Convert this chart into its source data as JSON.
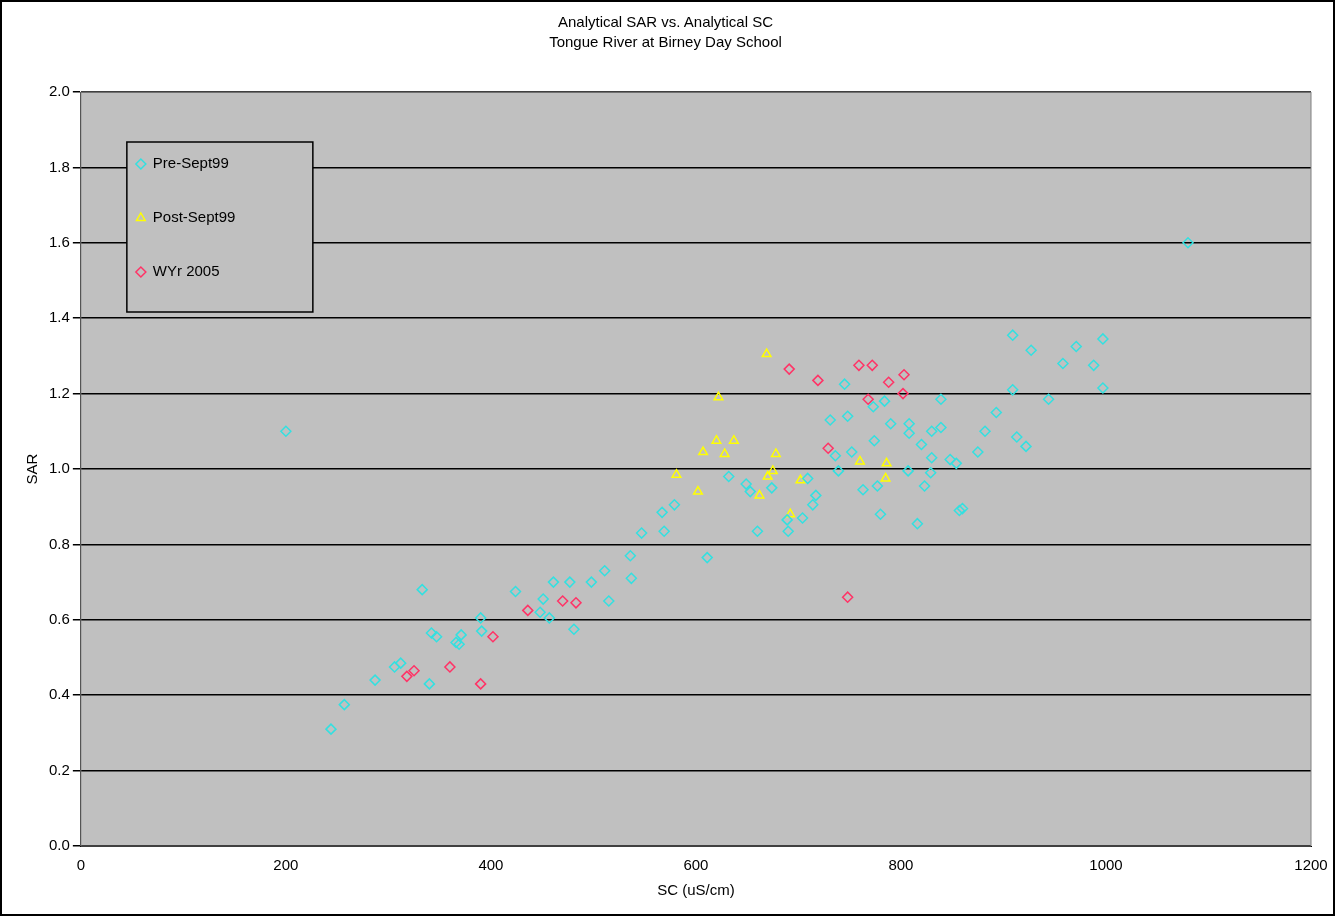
{
  "chart_data": {
    "type": "scatter",
    "title": "Analytical SAR vs. Analytical SC",
    "subtitle": "Tongue River at Birney Day School",
    "xlabel": "SC (uS/cm)",
    "ylabel": "SAR",
    "xlim": [
      0,
      1200
    ],
    "xticks": [
      0,
      200,
      400,
      600,
      800,
      1000,
      1200
    ],
    "ylim": [
      0,
      2
    ],
    "yticks": [
      {
        "value": 0,
        "label": "0.0"
      },
      {
        "value": 0.2,
        "label": "0.2"
      },
      {
        "value": 0.4,
        "label": "0.4"
      },
      {
        "value": 0.6,
        "label": "0.6"
      },
      {
        "value": 0.8,
        "label": "0.8"
      },
      {
        "value": 1,
        "label": "1.0"
      },
      {
        "value": 1.2,
        "label": "1.2"
      },
      {
        "value": 1.4,
        "label": "1.4"
      },
      {
        "value": 1.6,
        "label": "1.6"
      },
      {
        "value": 1.8,
        "label": "1.8"
      },
      {
        "value": 2,
        "label": "2.0"
      }
    ],
    "grid": "y",
    "legend": "top left",
    "series": [
      {
        "name": "Pre-Sept99",
        "color": "#33e0e0",
        "marker": "diamond",
        "x": [
          200,
          244,
          257,
          287,
          306,
          312,
          340,
          333,
          342,
          347,
          366,
          371,
          369,
          390,
          391,
          424,
          451,
          448,
          457,
          481,
          461,
          477,
          498,
          511,
          515,
          536,
          537,
          632,
          649,
          653,
          674,
          709,
          717,
          714,
          579,
          567,
          547,
          569,
          660,
          690,
          704,
          689,
          611,
          731,
          909,
          927,
          971,
          997,
          958,
          988,
          997,
          909,
          944,
          839,
          784,
          773,
          745,
          748,
          790,
          808,
          808,
          830,
          839,
          893,
          882,
          913,
          922,
          820,
          774,
          752,
          736,
          830,
          875,
          848,
          854,
          739,
          807,
          829,
          823,
          777,
          763,
          780,
          816,
          857,
          860,
          1080
        ],
        "values": [
          1.1,
          0.31,
          0.375,
          0.44,
          0.475,
          0.485,
          0.43,
          0.68,
          0.565,
          0.555,
          0.54,
          0.56,
          0.535,
          0.605,
          0.57,
          0.675,
          0.655,
          0.62,
          0.605,
          0.575,
          0.7,
          0.7,
          0.7,
          0.73,
          0.65,
          0.77,
          0.71,
          0.98,
          0.96,
          0.94,
          0.95,
          0.975,
          0.93,
          0.905,
          0.905,
          0.885,
          0.83,
          0.835,
          0.835,
          0.835,
          0.87,
          0.865,
          0.765,
          1.13,
          1.355,
          1.315,
          1.325,
          1.345,
          1.28,
          1.275,
          1.215,
          1.21,
          1.185,
          1.185,
          1.18,
          1.165,
          1.225,
          1.14,
          1.12,
          1.12,
          1.095,
          1.1,
          1.11,
          1.15,
          1.1,
          1.085,
          1.06,
          1.065,
          1.075,
          1.045,
          1.035,
          1.03,
          1.045,
          1.025,
          1.015,
          0.995,
          0.995,
          0.99,
          0.955,
          0.955,
          0.945,
          0.88,
          0.855,
          0.89,
          0.895,
          1.6
        ]
      },
      {
        "name": "Post-Sept99",
        "color": "#ffff00",
        "marker": "triangle",
        "x": [
          669,
          622,
          620,
          637,
          607,
          628,
          678,
          581,
          675,
          670,
          602,
          662,
          702,
          692,
          760,
          786,
          785
        ],
        "values": [
          1.305,
          1.19,
          1.075,
          1.075,
          1.045,
          1.04,
          1.04,
          0.985,
          0.995,
          0.98,
          0.94,
          0.93,
          0.97,
          0.88,
          1.02,
          1.015,
          0.975
        ]
      },
      {
        "name": "WYr 2005",
        "color": "#ff3366",
        "marker": "diamond",
        "x": [
          318,
          325,
          360,
          390,
          402,
          436,
          470,
          483,
          691,
          719,
          729,
          759,
          772,
          788,
          803,
          802,
          768,
          748
        ],
        "values": [
          0.45,
          0.465,
          0.475,
          0.43,
          0.555,
          0.625,
          0.65,
          0.645,
          1.265,
          1.235,
          1.055,
          1.275,
          1.275,
          1.23,
          1.25,
          1.2,
          1.185,
          0.66
        ]
      }
    ]
  }
}
